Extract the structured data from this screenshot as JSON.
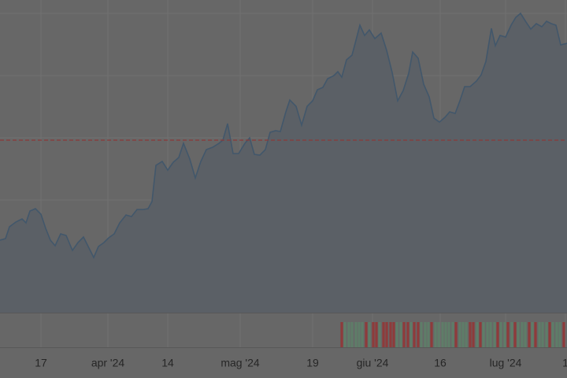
{
  "chart_data": {
    "type": "area",
    "x": [
      0,
      7,
      12,
      20,
      28,
      33,
      38,
      45,
      52,
      58,
      64,
      70,
      77,
      84,
      92,
      99,
      106,
      113,
      119,
      125,
      132,
      138,
      145,
      152,
      160,
      167,
      174,
      182,
      188,
      193,
      198,
      206,
      213,
      220,
      227,
      233,
      241,
      248,
      255,
      262,
      270,
      278,
      283,
      289,
      296,
      303,
      311,
      317,
      323,
      330,
      337,
      343,
      350,
      356,
      363,
      368,
      376,
      383,
      390,
      397,
      403,
      410,
      416,
      424,
      429,
      434,
      440,
      447,
      451,
      457,
      463,
      469,
      476,
      484,
      491,
      498,
      505,
      512,
      519,
      524,
      531,
      538,
      545,
      551,
      558,
      565,
      571,
      578,
      584,
      590,
      597,
      605,
      611,
      617,
      624,
      629,
      635,
      642,
      649,
      655,
      661,
      668,
      674,
      681,
      688,
      694,
      700,
      706,
      712,
      720
    ],
    "values": [
      92,
      94,
      109,
      115,
      119,
      114,
      129,
      132,
      125,
      107,
      92,
      85,
      100,
      98,
      79,
      89,
      96,
      82,
      70,
      84,
      89,
      95,
      100,
      114,
      124,
      122,
      131,
      131,
      132,
      141,
      187,
      192,
      181,
      191,
      197,
      215,
      195,
      171,
      192,
      207,
      210,
      215,
      219,
      240,
      202,
      202,
      215,
      222,
      201,
      200,
      207,
      229,
      231,
      230,
      255,
      270,
      262,
      238,
      262,
      269,
      283,
      286,
      297,
      301,
      306,
      299,
      321,
      327,
      342,
      365,
      352,
      359,
      348,
      355,
      333,
      305,
      269,
      282,
      304,
      331,
      323,
      290,
      274,
      247,
      242,
      248,
      255,
      253,
      269,
      287,
      287,
      294,
      302,
      319,
      361,
      339,
      352,
      350,
      365,
      375,
      380,
      369,
      360,
      367,
      363,
      370,
      367,
      365,
      340,
      342
    ],
    "line_color": "#42576b",
    "area_color": "#5b6066",
    "xlim": [
      0,
      720
    ],
    "ylim": [
      0,
      397
    ],
    "yticks": [
      64,
      143,
      222,
      301,
      380
    ],
    "xticks": [
      {
        "value": 52,
        "label": "17"
      },
      {
        "value": 137,
        "label": "apr '24"
      },
      {
        "value": 213,
        "label": "14"
      },
      {
        "value": 305,
        "label": "mag '24"
      },
      {
        "value": 397,
        "label": "19"
      },
      {
        "value": 473,
        "label": "giu '24"
      },
      {
        "value": 559,
        "label": "16"
      },
      {
        "value": 642,
        "label": "lug '24"
      },
      {
        "value": 718,
        "label": "1"
      }
    ],
    "grid": true,
    "reference_line": {
      "value": 219,
      "color": "#8a3a3a"
    },
    "volume": {
      "x": [
        434,
        438,
        443,
        447,
        452,
        456,
        460,
        465,
        469,
        474,
        478,
        482,
        487,
        491,
        496,
        500,
        504,
        509,
        513,
        518,
        522,
        526,
        531,
        535,
        540,
        544,
        548,
        553,
        557,
        562,
        566,
        570,
        575,
        579,
        584,
        588,
        592,
        597,
        601,
        606,
        610,
        614,
        619,
        623,
        628,
        632,
        636,
        641,
        645,
        650,
        654,
        658,
        663,
        667,
        672,
        676,
        680,
        685,
        689,
        694,
        698,
        702,
        707,
        711,
        716
      ],
      "values": [
        30,
        30,
        30,
        30,
        30,
        30,
        30,
        30,
        30,
        30,
        30,
        30,
        30,
        30,
        30,
        30,
        30,
        30,
        30,
        30,
        30,
        30,
        30,
        30,
        30,
        30,
        30,
        30,
        30,
        30,
        30,
        30,
        30,
        30,
        30,
        30,
        30,
        30,
        30,
        30,
        30,
        30,
        30,
        30,
        30,
        30,
        30,
        30,
        30,
        30,
        30,
        30,
        30,
        30,
        30,
        30,
        30,
        30,
        30,
        30,
        30,
        30,
        30,
        30,
        30
      ],
      "direction": [
        "down",
        "up",
        "up",
        "up",
        "up",
        "up",
        "up",
        "down",
        "up",
        "down",
        "down",
        "up",
        "down",
        "down",
        "down",
        "down",
        "up",
        "up",
        "down",
        "down",
        "up",
        "down",
        "down",
        "up",
        "up",
        "up",
        "down",
        "up",
        "up",
        "up",
        "up",
        "up",
        "up",
        "down",
        "up",
        "up",
        "up",
        "down",
        "down",
        "up",
        "down",
        "up",
        "up",
        "up",
        "up",
        "down",
        "up",
        "up",
        "down",
        "up",
        "down",
        "up",
        "up",
        "up",
        "down",
        "up",
        "down",
        "up",
        "up",
        "up",
        "down",
        "up",
        "up",
        "up",
        "down"
      ],
      "up_color": "#5e7d68",
      "down_color": "#8e3b3b",
      "ylim": [
        0,
        30
      ]
    }
  }
}
